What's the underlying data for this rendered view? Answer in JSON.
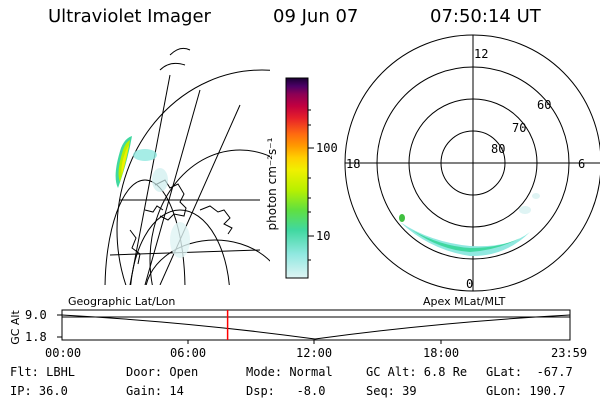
{
  "header": {
    "instrument": "Ultraviolet Imager",
    "date": "09 Jun 07",
    "time": "07:50:14 UT"
  },
  "colorbar": {
    "label": "photon cm⁻²s⁻¹",
    "ticks": [
      "100",
      "10"
    ],
    "colors": [
      "#1a0033",
      "#4b0066",
      "#8b0055",
      "#c2003f",
      "#e6202a",
      "#ff6a10",
      "#ff9a00",
      "#ffd000",
      "#f0f000",
      "#b8f000",
      "#60e040",
      "#40d8a0",
      "#90e8e0",
      "#dff4f4"
    ]
  },
  "polar_map": {
    "mlt_labels": [
      "12",
      "18",
      "6",
      "0"
    ],
    "mlat_labels": [
      "60",
      "70",
      "80"
    ]
  },
  "timeline": {
    "left_title": "Geographic Lat/Lon",
    "right_title": "Apex MLat/MLT",
    "y_label": "GC Alt",
    "y_ticks": [
      "9.0",
      "1.8"
    ],
    "x_ticks": [
      "00:00",
      "06:00",
      "12:00",
      "18:00",
      "23:59"
    ],
    "marker_time": "07:50",
    "marker_fraction": 0.326,
    "marker_color": "#ff0000"
  },
  "info": {
    "flt": "Flt: LBHL",
    "ip": "IP: 36.0",
    "door": "Door: Open",
    "gain": "Gain: 14",
    "mode": "Mode: Normal",
    "dsp": "Dsp:   -8.0",
    "gcalt": "GC Alt: 6.8 Re",
    "seq": "Seq: 39",
    "glat": "GLat:  -67.7",
    "glon": "GLon: 190.7"
  }
}
